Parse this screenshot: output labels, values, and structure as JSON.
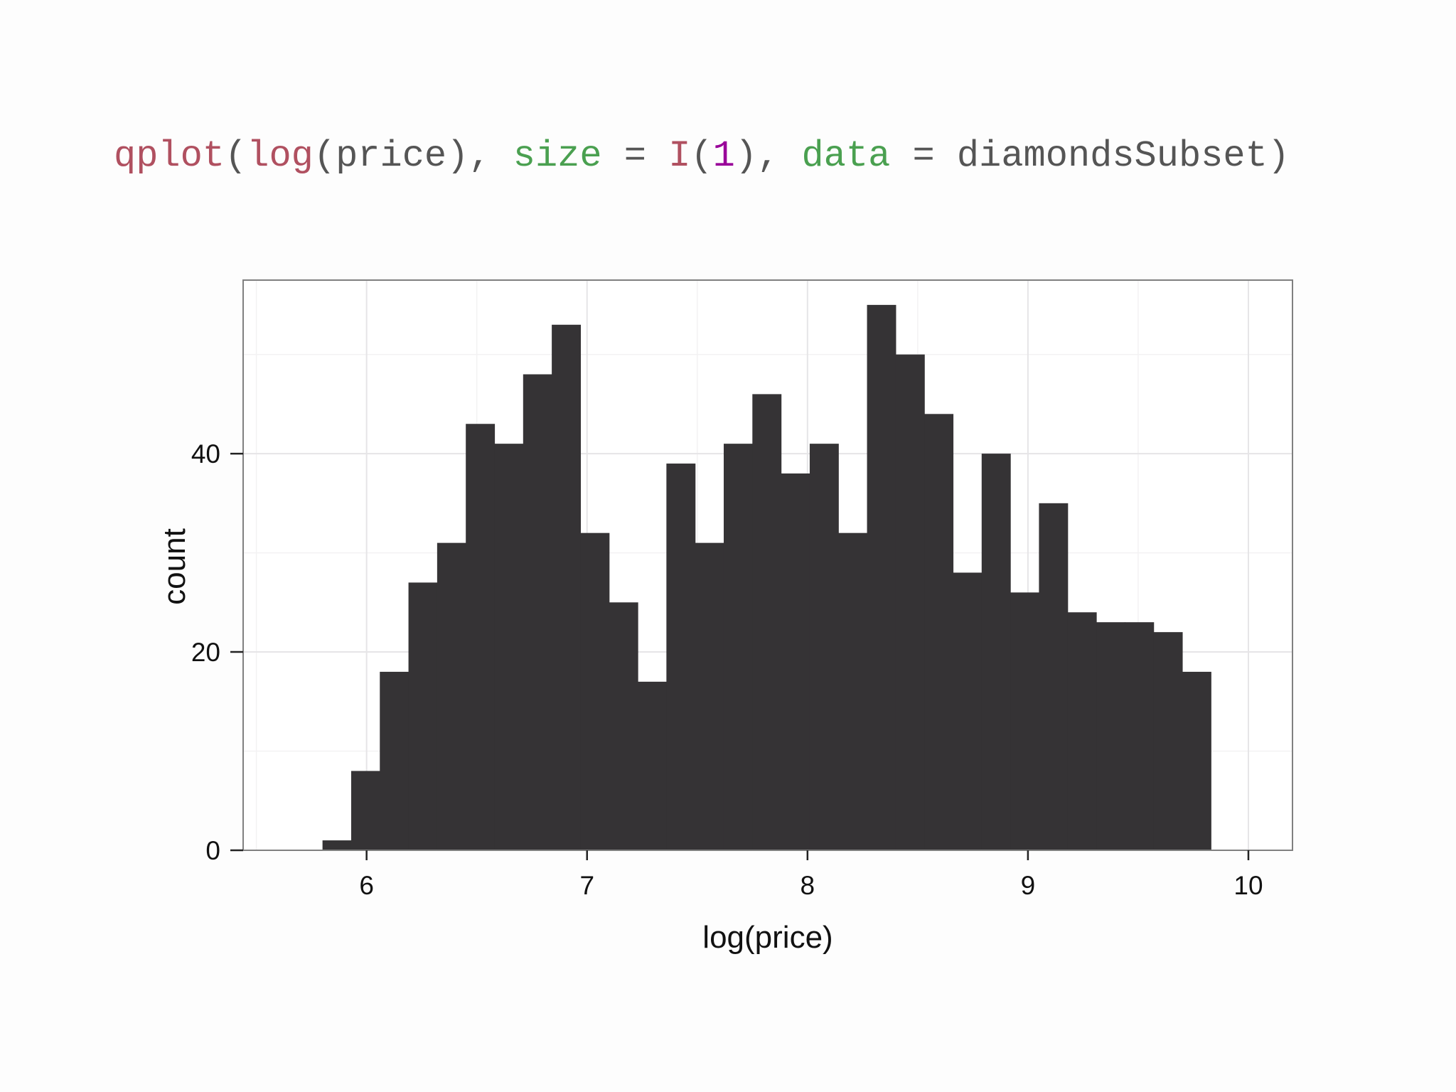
{
  "code_line": [
    {
      "text": "qplot",
      "color": "#b05060"
    },
    {
      "text": "(",
      "color": "#555555"
    },
    {
      "text": "log",
      "color": "#b05060"
    },
    {
      "text": "(price), ",
      "color": "#555555"
    },
    {
      "text": "size",
      "color": "#4aa050"
    },
    {
      "text": " = ",
      "color": "#555555"
    },
    {
      "text": "I",
      "color": "#b05060"
    },
    {
      "text": "(",
      "color": "#555555"
    },
    {
      "text": "1",
      "color": "#990099"
    },
    {
      "text": "), ",
      "color": "#555555"
    },
    {
      "text": "data",
      "color": "#4aa050"
    },
    {
      "text": " = diamondsSubset)",
      "color": "#555555"
    }
  ],
  "chart_data": {
    "type": "bar",
    "subtype": "histogram",
    "title": "",
    "xlabel": "log(price)",
    "ylabel": "count",
    "xlim": [
      5.44,
      10.2
    ],
    "ylim": [
      0,
      57.5
    ],
    "x_ticks": [
      6,
      7,
      8,
      9,
      10
    ],
    "y_ticks": [
      0,
      20,
      40
    ],
    "grid": true,
    "bar_color": "#353335",
    "bins": [
      {
        "x0": 5.67,
        "x1": 5.8,
        "count": 0
      },
      {
        "x0": 5.8,
        "x1": 5.93,
        "count": 1
      },
      {
        "x0": 5.93,
        "x1": 6.06,
        "count": 8
      },
      {
        "x0": 6.06,
        "x1": 6.19,
        "count": 18
      },
      {
        "x0": 6.19,
        "x1": 6.32,
        "count": 27
      },
      {
        "x0": 6.32,
        "x1": 6.45,
        "count": 31
      },
      {
        "x0": 6.45,
        "x1": 6.58,
        "count": 43
      },
      {
        "x0": 6.58,
        "x1": 6.71,
        "count": 41
      },
      {
        "x0": 6.71,
        "x1": 6.84,
        "count": 48
      },
      {
        "x0": 6.84,
        "x1": 6.97,
        "count": 53
      },
      {
        "x0": 6.97,
        "x1": 7.1,
        "count": 32
      },
      {
        "x0": 7.1,
        "x1": 7.23,
        "count": 25
      },
      {
        "x0": 7.23,
        "x1": 7.36,
        "count": 17
      },
      {
        "x0": 7.36,
        "x1": 7.49,
        "count": 39
      },
      {
        "x0": 7.49,
        "x1": 7.62,
        "count": 31
      },
      {
        "x0": 7.62,
        "x1": 7.75,
        "count": 41
      },
      {
        "x0": 7.75,
        "x1": 7.88,
        "count": 46
      },
      {
        "x0": 7.88,
        "x1": 8.01,
        "count": 38
      },
      {
        "x0": 8.01,
        "x1": 8.14,
        "count": 41
      },
      {
        "x0": 8.14,
        "x1": 8.27,
        "count": 32
      },
      {
        "x0": 8.27,
        "x1": 8.4,
        "count": 55
      },
      {
        "x0": 8.4,
        "x1": 8.53,
        "count": 50
      },
      {
        "x0": 8.53,
        "x1": 8.66,
        "count": 44
      },
      {
        "x0": 8.66,
        "x1": 8.79,
        "count": 28
      },
      {
        "x0": 8.79,
        "x1": 8.92,
        "count": 40
      },
      {
        "x0": 8.92,
        "x1": 9.05,
        "count": 26
      },
      {
        "x0": 9.05,
        "x1": 9.18,
        "count": 35
      },
      {
        "x0": 9.18,
        "x1": 9.31,
        "count": 24
      },
      {
        "x0": 9.31,
        "x1": 9.44,
        "count": 23
      },
      {
        "x0": 9.44,
        "x1": 9.57,
        "count": 23
      },
      {
        "x0": 9.57,
        "x1": 9.7,
        "count": 22
      },
      {
        "x0": 9.7,
        "x1": 9.83,
        "count": 18
      },
      {
        "x0": 9.83,
        "x1": 9.96,
        "count": 0
      }
    ]
  }
}
